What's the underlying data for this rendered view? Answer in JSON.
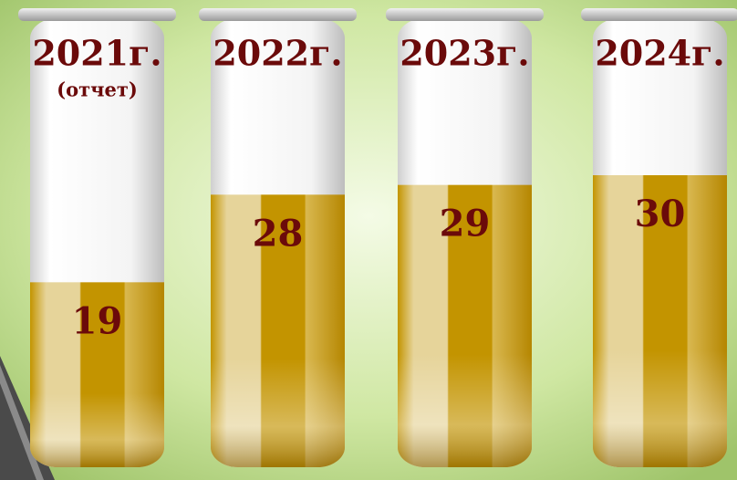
{
  "chart_data": {
    "type": "tubes",
    "categories": [
      "2021г.",
      "2022г.",
      "2023г.",
      "2024г."
    ],
    "category_sublabels": [
      "(отчет)",
      null,
      null,
      null
    ],
    "values": [
      19,
      28,
      29,
      30
    ],
    "color": "#c09000"
  }
}
